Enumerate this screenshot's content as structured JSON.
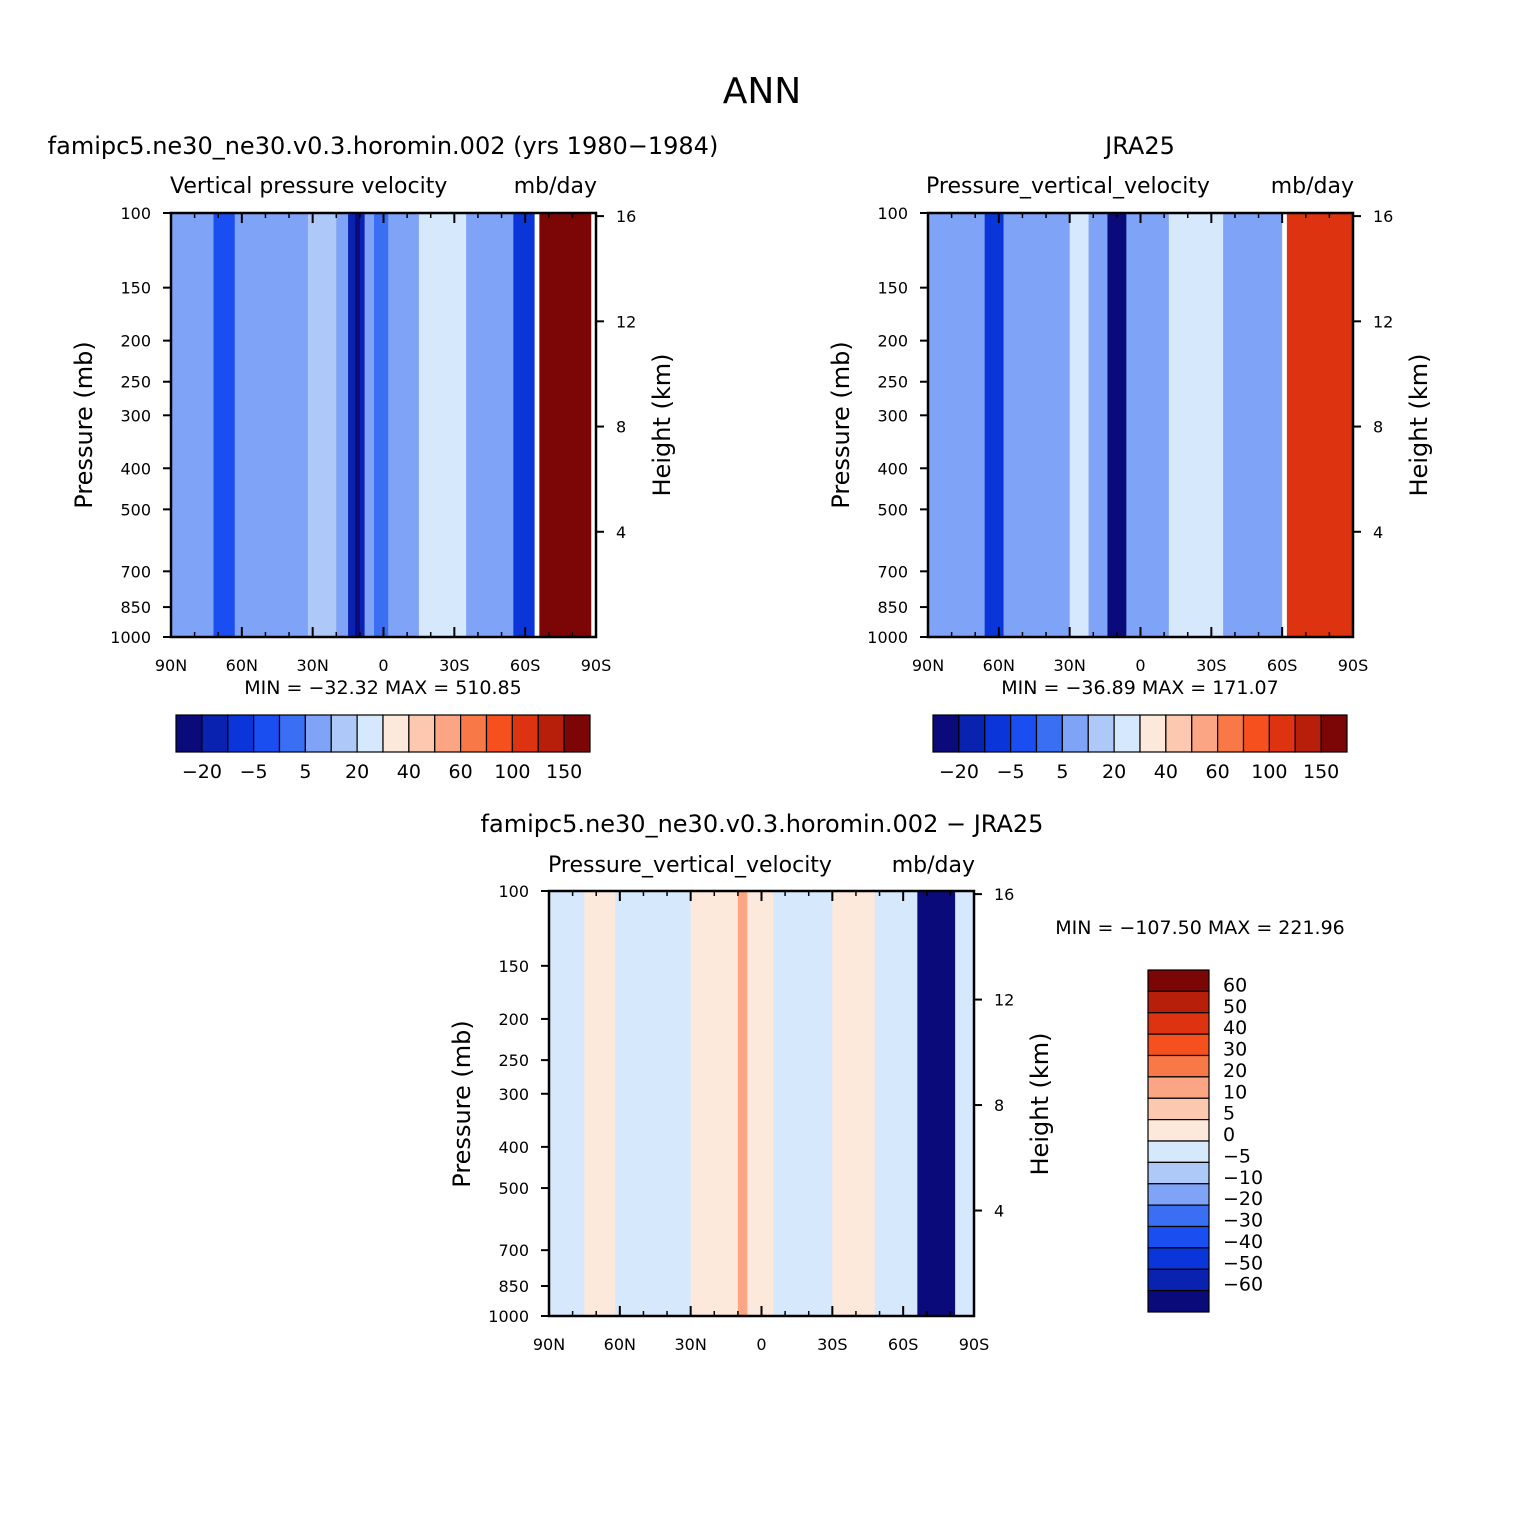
{
  "figure": {
    "title": "ANN"
  },
  "colors": {
    "main_scale": [
      "#0a0a7a",
      "#0a22b0",
      "#0a35d8",
      "#1b4ef0",
      "#3a6ef3",
      "#7fa4f7",
      "#aec8f8",
      "#d6e8fc",
      "#fde8dc",
      "#fcc9b0",
      "#fba585",
      "#f97848",
      "#f6501e",
      "#dd3310",
      "#b81f0a",
      "#7c0606"
    ],
    "diff_scale": [
      "#0a0a7a",
      "#0a22b0",
      "#0a35d8",
      "#1b4ef0",
      "#3a6ef3",
      "#7fa4f7",
      "#aec8f8",
      "#d6e8fc",
      "#fde8dc",
      "#fcc9b0",
      "#fba585",
      "#f97848",
      "#f6501e",
      "#dd3310",
      "#b81f0a",
      "#7c0606"
    ]
  },
  "chart_data": [
    {
      "type": "heatmap",
      "title": "famipc5.ne30_ne30.v0.3.horomin.002 (yrs 1980−1984)",
      "subtitle_left": "Vertical  pressure  velocity",
      "subtitle_right": "mb/day",
      "ylabel": "Pressure  (mb)",
      "y2label": "Height  (km)",
      "x_ticks": [
        "90N",
        "60N",
        "30N",
        "0",
        "30S",
        "60S",
        "90S"
      ],
      "y_ticks": [
        100,
        150,
        200,
        250,
        300,
        400,
        500,
        700,
        850,
        1000
      ],
      "y2_ticks": [
        16,
        12,
        8,
        4
      ],
      "ylim": [
        1000,
        100
      ],
      "stats": "MIN  =  −32.32    MAX  =  510.85",
      "colorbar_labels": [
        "−20",
        "−5",
        "5",
        "20",
        "40",
        "60",
        "100",
        "150"
      ],
      "fields": [
        {
          "x": [
            -90,
            60
          ],
          "level": 5
        },
        {
          "x": [
            -72,
            -63
          ],
          "level": 3
        },
        {
          "x": [
            -32,
            -20
          ],
          "level": 6
        },
        {
          "x": [
            -15,
            -8
          ],
          "level": 1
        },
        {
          "x": [
            -12,
            -10
          ],
          "level": 0
        },
        {
          "x": [
            -4,
            2
          ],
          "level": 4
        },
        {
          "x": [
            15,
            35
          ],
          "level": 7
        },
        {
          "x": [
            55,
            64
          ],
          "level": 2
        },
        {
          "x": [
            66,
            88
          ],
          "level": 15
        }
      ]
    },
    {
      "type": "heatmap",
      "title": "JRA25",
      "subtitle_left": "Pressure_vertical_velocity",
      "subtitle_right": "mb/day",
      "ylabel": "Pressure  (mb)",
      "y2label": "Height  (km)",
      "x_ticks": [
        "90N",
        "60N",
        "30N",
        "0",
        "30S",
        "60S",
        "90S"
      ],
      "y_ticks": [
        100,
        150,
        200,
        250,
        300,
        400,
        500,
        700,
        850,
        1000
      ],
      "y2_ticks": [
        16,
        12,
        8,
        4
      ],
      "ylim": [
        1000,
        100
      ],
      "stats": "MIN  =  −36.89    MAX  =  171.07",
      "colorbar_labels": [
        "−20",
        "−5",
        "5",
        "20",
        "40",
        "60",
        "100",
        "150"
      ],
      "fields": [
        {
          "x": [
            -90,
            60
          ],
          "level": 5
        },
        {
          "x": [
            -66,
            -58
          ],
          "level": 2
        },
        {
          "x": [
            -30,
            -22
          ],
          "level": 7
        },
        {
          "x": [
            -14,
            -6
          ],
          "level": 0
        },
        {
          "x": [
            12,
            35
          ],
          "level": 7
        },
        {
          "x": [
            62,
            90
          ],
          "level": 13
        }
      ]
    },
    {
      "type": "heatmap",
      "title": "famipc5.ne30_ne30.v0.3.horomin.002 − JRA25",
      "subtitle_left": "Pressure_vertical_velocity",
      "subtitle_right": "mb/day",
      "ylabel": "Pressure  (mb)",
      "y2label": "Height  (km)",
      "x_ticks": [
        "90N",
        "60N",
        "30N",
        "0",
        "30S",
        "60S",
        "90S"
      ],
      "y_ticks": [
        100,
        150,
        200,
        250,
        300,
        400,
        500,
        700,
        850,
        1000
      ],
      "y2_ticks": [
        16,
        12,
        8,
        4
      ],
      "ylim": [
        1000,
        100
      ],
      "stats": "MIN  =  −107.50    MAX  =  221.96",
      "colorbar_labels": [
        "60",
        "50",
        "40",
        "30",
        "20",
        "10",
        "5",
        "0",
        "−5",
        "−10",
        "−20",
        "−30",
        "−40",
        "−50",
        "−60"
      ],
      "fields": [
        {
          "x": [
            -90,
            90
          ],
          "level": 7
        },
        {
          "x": [
            -75,
            -62
          ],
          "level": 8
        },
        {
          "x": [
            -30,
            5
          ],
          "level": 8
        },
        {
          "x": [
            -10,
            -6
          ],
          "level": 10
        },
        {
          "x": [
            30,
            48
          ],
          "level": 8
        },
        {
          "x": [
            66,
            82
          ],
          "level": 0
        }
      ]
    }
  ]
}
